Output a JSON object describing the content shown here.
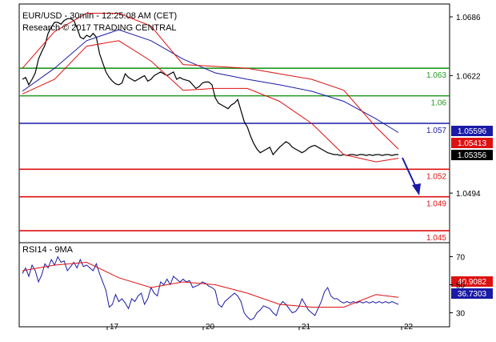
{
  "chart_data": [
    {
      "type": "line",
      "title": "EUR/USD - 30min - 12:25:08 AM (CET)",
      "subtitle": "Research © 2017 TRADING CENTRAL",
      "x_ticks": [
        "17",
        "20",
        "21",
        "22"
      ],
      "y_ticks": [
        "1.0686",
        "1.0622",
        "1.0494"
      ],
      "ylim": [
        1.044,
        1.07
      ],
      "levels": [
        {
          "label": "1.063",
          "value": 1.063,
          "color": "#229922"
        },
        {
          "label": "1.06",
          "value": 1.06,
          "color": "#229922"
        },
        {
          "label": "1.057",
          "value": 1.057,
          "color": "#1a1aa6"
        },
        {
          "label": "1.052",
          "value": 1.052,
          "color": "#dd1111"
        },
        {
          "label": "1.049",
          "value": 1.049,
          "color": "#dd1111"
        },
        {
          "label": "1.045",
          "value": 1.0453,
          "color": "#dd1111"
        }
      ],
      "price_tags": [
        {
          "label": "1.05596",
          "value": 1.05596,
          "color": "#1a1aa6"
        },
        {
          "label": "1.05413",
          "value": 1.05413,
          "color": "#dd1111"
        },
        {
          "label": "1.05356",
          "value": 1.05356,
          "color": "#000000"
        }
      ],
      "series": [
        {
          "role": "price",
          "color": "#000000",
          "x": [
            0,
            4,
            8,
            12,
            16,
            20,
            24,
            28,
            32,
            36,
            40,
            44,
            48,
            52,
            56,
            60,
            64,
            68,
            72,
            76,
            80,
            84,
            88,
            92,
            96,
            100,
            104,
            108,
            112,
            116,
            120,
            124,
            128,
            132,
            136,
            140,
            144,
            148,
            152,
            156,
            160,
            164,
            168,
            172,
            176,
            180,
            184,
            188,
            192,
            196,
            200,
            204,
            208,
            212,
            216,
            220,
            224,
            228,
            232,
            236,
            240,
            244,
            248,
            252,
            256,
            260,
            264,
            268,
            272,
            276,
            280,
            284,
            288,
            292,
            296,
            300,
            304,
            308,
            312,
            316,
            320,
            324,
            328,
            332,
            336,
            340,
            344,
            348,
            352,
            356,
            360,
            364,
            368,
            372,
            376,
            380,
            384,
            388,
            392,
            396,
            400,
            404,
            408,
            412,
            416,
            420,
            424,
            428,
            432,
            436,
            440,
            444,
            448,
            452,
            456,
            460,
            464,
            468
          ],
          "values": [
            1.0618,
            1.062,
            1.0612,
            1.0618,
            1.0625,
            1.064,
            1.0648,
            1.0655,
            1.0668,
            1.0675,
            1.068,
            1.068,
            1.0678,
            1.0682,
            1.0684,
            1.0684,
            1.0682,
            1.0674,
            1.0664,
            1.0662,
            1.0666,
            1.0664,
            1.0668,
            1.0664,
            1.0646,
            1.0636,
            1.0626,
            1.062,
            1.0616,
            1.0613,
            1.0612,
            1.0614,
            1.0624,
            1.062,
            1.0618,
            1.0616,
            1.0618,
            1.062,
            1.0622,
            1.0616,
            1.0618,
            1.0622,
            1.0624,
            1.0626,
            1.0624,
            1.0622,
            1.0624,
            1.0626,
            1.0618,
            1.062,
            1.0618,
            1.0617,
            1.0616,
            1.0612,
            1.0608,
            1.061,
            1.0614,
            1.0615,
            1.0615,
            1.0612,
            1.0598,
            1.0592,
            1.059,
            1.0588,
            1.0586,
            1.059,
            1.0592,
            1.0596,
            1.0584,
            1.0572,
            1.0566,
            1.0556,
            1.0548,
            1.0542,
            1.0538,
            1.054,
            1.0542,
            1.0544,
            1.0536,
            1.054,
            1.0544,
            1.0547,
            1.055,
            1.0548,
            1.0544,
            1.0542,
            1.054,
            1.0538,
            1.054,
            1.0543,
            1.0545,
            1.0546,
            1.0544,
            1.0542,
            1.054,
            1.0538,
            1.0537,
            1.0536,
            1.0536,
            1.0535,
            1.0536,
            1.0535,
            1.0536,
            1.0536,
            1.0535,
            1.0536,
            1.0536,
            1.0535,
            1.0536,
            1.0535,
            1.0536,
            1.0536,
            1.0535,
            1.0536,
            1.0536,
            1.0535,
            1.0536,
            1.0536
          ]
        },
        {
          "role": "moving-average",
          "color": "#1a1aa6",
          "x": [
            0,
            40,
            80,
            120,
            160,
            200,
            240,
            280,
            320,
            360,
            400,
            440,
            468
          ],
          "values": [
            1.0605,
            1.063,
            1.066,
            1.0672,
            1.066,
            1.064,
            1.0625,
            1.0618,
            1.0612,
            1.0605,
            1.0594,
            1.0575,
            1.056
          ]
        },
        {
          "role": "bollinger-upper",
          "color": "#dd1111",
          "x": [
            0,
            40,
            80,
            120,
            160,
            200,
            240,
            280,
            320,
            360,
            400,
            440,
            468
          ],
          "values": [
            1.063,
            1.067,
            1.069,
            1.069,
            1.0676,
            1.0634,
            1.0632,
            1.063,
            1.0624,
            1.0618,
            1.0606,
            1.0566,
            1.0542
          ]
        },
        {
          "role": "bollinger-lower",
          "color": "#dd1111",
          "x": [
            0,
            40,
            80,
            120,
            160,
            200,
            240,
            280,
            320,
            360,
            400,
            440,
            468
          ],
          "values": [
            1.0602,
            1.0618,
            1.0654,
            1.066,
            1.0638,
            1.0606,
            1.0608,
            1.0608,
            1.0594,
            1.057,
            1.0536,
            1.0528,
            1.0532
          ]
        }
      ]
    },
    {
      "type": "line",
      "title": "RSI14 - 9MA",
      "ylim": [
        20,
        80
      ],
      "y_ticks": [
        "70",
        "50",
        "30"
      ],
      "value_tags": [
        {
          "label": "40.9082",
          "value": 40.9082,
          "color": "#dd1111"
        },
        {
          "label": "36.7303",
          "value": 36.7303,
          "color": "#1a1aa6"
        }
      ],
      "series": [
        {
          "role": "rsi",
          "color": "#1a1aa6",
          "x": [
            0,
            4,
            8,
            12,
            16,
            20,
            24,
            28,
            32,
            36,
            40,
            44,
            48,
            52,
            56,
            60,
            64,
            68,
            72,
            76,
            80,
            84,
            88,
            92,
            96,
            100,
            104,
            108,
            112,
            116,
            120,
            124,
            128,
            132,
            136,
            140,
            144,
            148,
            152,
            156,
            160,
            164,
            168,
            172,
            176,
            180,
            184,
            188,
            192,
            196,
            200,
            204,
            208,
            212,
            216,
            220,
            224,
            228,
            232,
            236,
            240,
            244,
            248,
            252,
            256,
            260,
            264,
            268,
            272,
            276,
            280,
            284,
            288,
            292,
            296,
            300,
            304,
            308,
            312,
            316,
            320,
            324,
            328,
            332,
            336,
            340,
            344,
            348,
            352,
            356,
            360,
            364,
            368,
            372,
            376,
            380,
            384,
            388,
            392,
            396,
            400,
            404,
            408,
            412,
            416,
            420,
            424,
            428,
            432,
            436,
            440,
            444,
            448,
            452,
            456,
            460,
            464,
            468
          ],
          "values": [
            58,
            62,
            56,
            64,
            60,
            52,
            57,
            65,
            62,
            68,
            64,
            70,
            66,
            67,
            60,
            63,
            66,
            62,
            68,
            63,
            64,
            62,
            60,
            65,
            58,
            52,
            46,
            34,
            36,
            43,
            38,
            40,
            37,
            33,
            40,
            38,
            42,
            44,
            36,
            40,
            48,
            44,
            42,
            52,
            50,
            54,
            50,
            56,
            54,
            52,
            54,
            52,
            53,
            48,
            49,
            50,
            52,
            51,
            49,
            48,
            46,
            36,
            34,
            38,
            40,
            42,
            44,
            42,
            38,
            30,
            27,
            25,
            26,
            30,
            32,
            35,
            34,
            33,
            30,
            28,
            35,
            38,
            36,
            33,
            30,
            31,
            34,
            40,
            36,
            32,
            30,
            28,
            33,
            38,
            45,
            48,
            42,
            40,
            40,
            38,
            37,
            38,
            37,
            38,
            37,
            38,
            37,
            38,
            37,
            38,
            37,
            38,
            37,
            38,
            37,
            38,
            37,
            36
          ]
        },
        {
          "role": "rsi-ma",
          "color": "#dd1111",
          "x": [
            0,
            40,
            80,
            120,
            160,
            200,
            240,
            280,
            320,
            360,
            400,
            440,
            468
          ],
          "values": [
            60,
            64,
            66,
            55,
            48,
            52,
            50,
            44,
            36,
            34,
            34,
            43,
            41
          ]
        }
      ]
    }
  ]
}
